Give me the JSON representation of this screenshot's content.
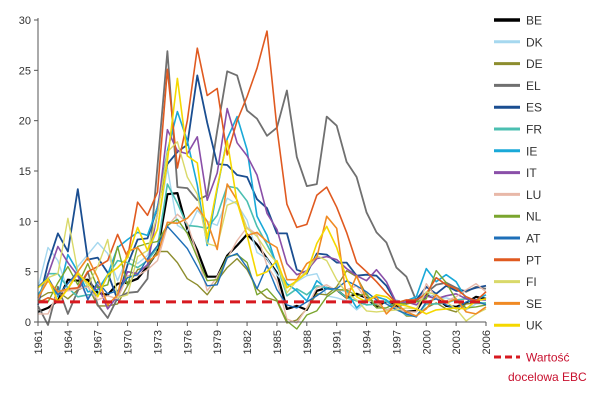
{
  "chart_data": {
    "type": "line",
    "title": "",
    "xlabel": "",
    "ylabel": "",
    "xlim": [
      1961,
      2006
    ],
    "ylim": [
      0,
      30
    ],
    "grid": false,
    "legend_placement": "right",
    "x_ticks": [
      1961,
      1964,
      1967,
      1970,
      1973,
      1976,
      1979,
      1982,
      1985,
      1988,
      1991,
      1994,
      1997,
      2000,
      2003,
      2006
    ],
    "y_ticks": [
      0,
      5,
      10,
      15,
      20,
      25,
      30
    ],
    "x": [
      1961,
      1962,
      1963,
      1964,
      1965,
      1966,
      1967,
      1968,
      1969,
      1970,
      1971,
      1972,
      1973,
      1974,
      1975,
      1976,
      1977,
      1978,
      1979,
      1980,
      1981,
      1982,
      1983,
      1984,
      1985,
      1986,
      1987,
      1988,
      1989,
      1990,
      1991,
      1992,
      1993,
      1994,
      1995,
      1996,
      1997,
      1998,
      1999,
      2000,
      2001,
      2002,
      2003,
      2004,
      2005,
      2006
    ],
    "series": [
      {
        "name": "BE",
        "color": "#000000",
        "width": 2.2,
        "values": [
          1.0,
          1.4,
          2.1,
          4.2,
          4.1,
          4.2,
          2.9,
          2.7,
          3.8,
          3.9,
          4.3,
          5.5,
          7.0,
          12.7,
          12.8,
          9.2,
          7.1,
          4.5,
          4.5,
          6.6,
          7.6,
          8.7,
          7.7,
          6.3,
          4.9,
          1.3,
          1.6,
          1.2,
          3.1,
          3.4,
          3.2,
          2.4,
          2.8,
          2.4,
          1.5,
          2.1,
          1.6,
          1.0,
          1.1,
          2.7,
          2.4,
          1.6,
          1.5,
          1.9,
          2.5,
          2.3
        ]
      },
      {
        "name": "DK",
        "color": "#a6d8ef",
        "width": 1.4,
        "values": [
          3.4,
          7.4,
          6.1,
          3.1,
          5.5,
          6.7,
          7.9,
          6.8,
          4.1,
          6.5,
          5.8,
          6.6,
          9.3,
          15.3,
          9.6,
          9.0,
          11.1,
          10.0,
          9.6,
          12.3,
          11.7,
          10.1,
          6.9,
          6.3,
          4.7,
          3.6,
          4.0,
          4.6,
          4.8,
          2.6,
          2.4,
          2.1,
          1.2,
          2.0,
          2.1,
          2.1,
          2.2,
          1.8,
          2.5,
          2.9,
          2.3,
          2.4,
          2.1,
          1.2,
          1.8,
          1.9
        ]
      },
      {
        "name": "DE",
        "color": "#8d8d2e",
        "width": 1.4,
        "values": [
          2.3,
          2.9,
          3.0,
          2.3,
          3.2,
          3.6,
          1.6,
          1.6,
          1.8,
          3.6,
          5.2,
          5.5,
          7.0,
          7.0,
          5.9,
          4.3,
          3.7,
          2.7,
          4.1,
          5.4,
          6.3,
          5.2,
          3.3,
          2.4,
          2.1,
          -0.1,
          0.2,
          1.3,
          2.8,
          2.7,
          3.5,
          5.1,
          4.5,
          2.7,
          1.7,
          1.2,
          1.5,
          0.6,
          0.6,
          1.4,
          1.9,
          1.3,
          1.0,
          1.8,
          1.9,
          1.8
        ]
      },
      {
        "name": "EL",
        "color": "#707070",
        "width": 1.8,
        "values": [
          1.6,
          -0.3,
          3.5,
          0.8,
          3.1,
          5.0,
          1.7,
          0.4,
          2.4,
          2.9,
          3.0,
          4.3,
          15.5,
          26.9,
          13.4,
          13.3,
          12.1,
          12.6,
          19.0,
          24.9,
          24.5,
          21.0,
          20.2,
          18.5,
          19.3,
          23.0,
          16.4,
          13.5,
          13.7,
          20.4,
          19.5,
          15.9,
          14.4,
          10.9,
          8.9,
          7.9,
          5.4,
          4.5,
          2.1,
          2.9,
          3.7,
          3.9,
          3.4,
          3.0,
          3.5,
          3.3
        ]
      },
      {
        "name": "ES",
        "color": "#1a4e91",
        "width": 1.8,
        "values": [
          1.7,
          5.8,
          8.8,
          7.0,
          13.2,
          6.2,
          6.4,
          4.9,
          2.2,
          5.7,
          8.2,
          8.3,
          11.4,
          15.7,
          16.9,
          17.6,
          24.5,
          19.8,
          15.7,
          15.6,
          14.6,
          14.4,
          12.2,
          11.3,
          8.8,
          8.8,
          5.2,
          4.8,
          6.8,
          6.7,
          5.9,
          5.9,
          4.6,
          4.7,
          4.6,
          3.6,
          1.9,
          1.8,
          2.2,
          3.5,
          2.8,
          3.6,
          3.1,
          3.1,
          3.4,
          3.6
        ]
      },
      {
        "name": "FR",
        "color": "#4bbfb1",
        "width": 1.6,
        "values": [
          2.4,
          4.8,
          4.8,
          3.4,
          2.5,
          2.7,
          2.7,
          4.6,
          6.1,
          5.9,
          5.4,
          6.1,
          7.4,
          13.7,
          11.8,
          9.6,
          9.5,
          9.3,
          10.6,
          13.5,
          13.3,
          12.0,
          9.5,
          7.7,
          5.8,
          2.6,
          3.3,
          2.7,
          3.6,
          3.4,
          3.2,
          2.4,
          2.1,
          1.7,
          1.8,
          2.1,
          1.3,
          0.7,
          0.6,
          1.8,
          1.8,
          1.9,
          2.2,
          2.3,
          1.9,
          1.9
        ]
      },
      {
        "name": "IE",
        "color": "#1aa9d8",
        "width": 1.6,
        "values": [
          2.7,
          4.2,
          2.5,
          6.7,
          5.0,
          3.0,
          3.2,
          4.7,
          7.4,
          8.2,
          8.9,
          8.6,
          11.4,
          17.0,
          20.9,
          18.0,
          13.6,
          7.6,
          13.2,
          18.2,
          20.4,
          17.1,
          10.5,
          8.6,
          5.5,
          3.8,
          3.1,
          2.1,
          4.1,
          3.3,
          3.2,
          3.1,
          1.4,
          2.3,
          2.5,
          2.2,
          1.2,
          2.1,
          2.5,
          5.3,
          4.0,
          4.7,
          4.0,
          2.3,
          2.2,
          2.7
        ]
      },
      {
        "name": "IT",
        "color": "#8a4fa8",
        "width": 1.6,
        "values": [
          2.1,
          4.7,
          7.5,
          5.9,
          4.6,
          2.3,
          3.7,
          1.3,
          2.6,
          5.0,
          4.8,
          5.7,
          10.8,
          19.1,
          17.0,
          16.7,
          18.4,
          12.1,
          14.8,
          21.2,
          17.8,
          16.5,
          14.6,
          10.8,
          9.2,
          5.8,
          4.7,
          5.1,
          6.3,
          6.5,
          6.2,
          5.3,
          4.6,
          4.1,
          5.2,
          4.0,
          1.9,
          2.0,
          1.7,
          2.6,
          2.3,
          2.6,
          2.8,
          2.3,
          2.2,
          2.2
        ]
      },
      {
        "name": "LU",
        "color": "#e8b8a8",
        "width": 1.4,
        "values": [
          0.8,
          0.8,
          2.9,
          3.1,
          3.3,
          3.5,
          2.2,
          2.6,
          2.3,
          4.6,
          4.6,
          5.2,
          6.1,
          9.5,
          10.7,
          9.8,
          6.7,
          3.1,
          4.5,
          6.3,
          8.1,
          9.4,
          8.7,
          5.6,
          4.1,
          0.3,
          -0.1,
          1.4,
          3.4,
          3.7,
          3.1,
          3.2,
          3.6,
          2.2,
          1.9,
          1.2,
          1.4,
          1.0,
          1.0,
          3.8,
          2.4,
          2.1,
          2.5,
          3.2,
          3.8,
          3.0
        ]
      },
      {
        "name": "NL",
        "color": "#7aa52e",
        "width": 1.4,
        "values": [
          2.2,
          2.0,
          3.9,
          5.5,
          3.7,
          5.8,
          3.4,
          3.7,
          7.5,
          3.6,
          7.5,
          7.8,
          8.0,
          9.6,
          10.2,
          8.8,
          6.4,
          4.1,
          4.2,
          6.5,
          6.7,
          5.9,
          2.7,
          3.3,
          2.2,
          0.1,
          -0.7,
          0.7,
          1.1,
          2.5,
          3.2,
          3.2,
          2.6,
          2.8,
          1.4,
          1.4,
          1.9,
          1.8,
          2.0,
          2.3,
          5.1,
          3.9,
          2.2,
          1.4,
          1.5,
          1.7
        ]
      },
      {
        "name": "AT",
        "color": "#1e6fb8",
        "width": 1.4,
        "values": [
          3.5,
          4.4,
          2.7,
          3.8,
          5.0,
          2.2,
          4.0,
          2.8,
          3.1,
          4.4,
          4.7,
          6.3,
          7.6,
          9.5,
          8.4,
          7.3,
          5.5,
          3.6,
          3.7,
          6.4,
          6.8,
          5.4,
          3.3,
          5.6,
          3.2,
          1.7,
          1.4,
          2.0,
          2.6,
          3.3,
          3.3,
          4.1,
          3.6,
          3.0,
          2.2,
          1.8,
          1.2,
          0.8,
          0.5,
          2.0,
          2.3,
          1.7,
          1.3,
          2.0,
          2.1,
          1.7
        ]
      },
      {
        "name": "PT",
        "color": "#e05a20",
        "width": 1.6,
        "values": [
          1.9,
          2.4,
          2.1,
          3.3,
          3.4,
          5.0,
          5.5,
          6.1,
          8.7,
          6.4,
          11.9,
          10.6,
          12.9,
          25.1,
          15.3,
          20.0,
          27.2,
          22.5,
          23.2,
          16.6,
          20.0,
          22.4,
          25.2,
          28.9,
          19.3,
          11.7,
          9.4,
          9.7,
          12.6,
          13.4,
          11.4,
          8.9,
          5.9,
          5.0,
          4.0,
          2.9,
          1.9,
          2.2,
          2.2,
          2.8,
          4.4,
          3.7,
          3.3,
          2.5,
          2.1,
          3.0
        ]
      },
      {
        "name": "FI",
        "color": "#d9d96a",
        "width": 1.4,
        "values": [
          2.3,
          4.4,
          4.8,
          10.3,
          5.0,
          3.6,
          5.5,
          8.2,
          2.4,
          2.7,
          6.5,
          7.1,
          10.7,
          16.9,
          17.9,
          14.4,
          12.7,
          7.8,
          7.5,
          11.6,
          12.0,
          9.3,
          8.5,
          7.0,
          5.9,
          2.9,
          4.1,
          5.1,
          6.6,
          6.1,
          4.2,
          2.9,
          2.2,
          1.1,
          1.0,
          1.1,
          1.2,
          1.4,
          1.3,
          3.0,
          2.7,
          2.0,
          1.3,
          0.1,
          0.8,
          1.3
        ]
      },
      {
        "name": "SE",
        "color": "#f08a24",
        "width": 1.6,
        "values": [
          2.4,
          4.1,
          3.0,
          3.3,
          5.0,
          6.4,
          4.4,
          1.7,
          2.7,
          7.0,
          7.4,
          6.0,
          6.7,
          9.9,
          9.8,
          10.3,
          11.4,
          10.0,
          7.2,
          13.7,
          12.1,
          8.6,
          8.9,
          8.0,
          7.4,
          4.2,
          4.2,
          5.8,
          6.4,
          10.5,
          9.3,
          2.3,
          4.6,
          2.2,
          2.5,
          0.8,
          1.8,
          1.0,
          0.6,
          1.3,
          2.7,
          1.9,
          2.3,
          1.0,
          0.8,
          1.5
        ]
      },
      {
        "name": "UK",
        "color": "#f5d800",
        "width": 1.6,
        "values": [
          3.4,
          4.3,
          2.0,
          3.3,
          4.8,
          3.9,
          2.5,
          4.7,
          5.4,
          6.4,
          9.4,
          7.1,
          9.2,
          16.0,
          24.2,
          16.5,
          15.8,
          8.3,
          13.4,
          18.0,
          11.9,
          8.6,
          4.6,
          5.0,
          6.1,
          3.4,
          4.1,
          4.9,
          7.8,
          9.5,
          7.4,
          4.3,
          2.5,
          2.0,
          2.7,
          2.5,
          1.8,
          1.6,
          1.3,
          0.8,
          1.2,
          1.3,
          1.4,
          1.3,
          2.1,
          2.3
        ]
      }
    ],
    "target_line": {
      "label_line1": "Wartość",
      "label_line2": "docelowa EBC",
      "value": 2,
      "color": "#d71920"
    }
  }
}
